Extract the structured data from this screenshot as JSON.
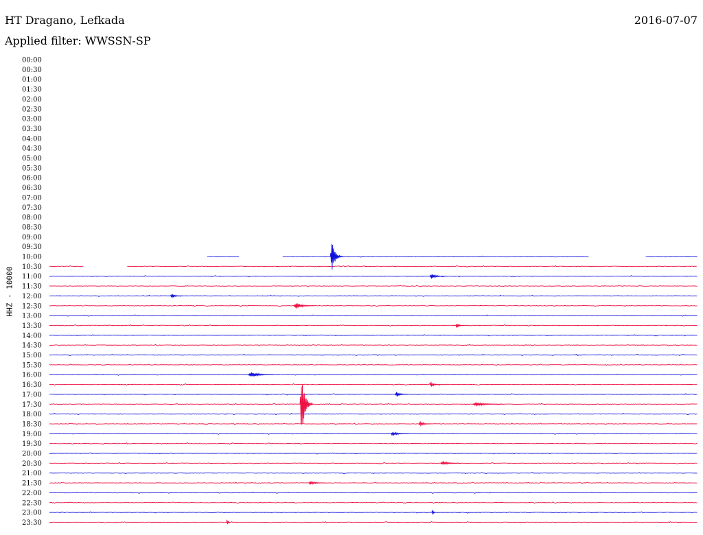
{
  "header": {
    "station": "HT Dragano, Lefkada",
    "date": "2016-07-07",
    "filter_label": "Applied filter:",
    "filter_value": "WWSSN-SP"
  },
  "colors": {
    "trace_a": "#1010dd",
    "trace_b": "#ee1144",
    "text": "#000000"
  },
  "chart_data": {
    "type": "line",
    "title": "HT Dragano, Lefkada",
    "ylabel": "HHZ - 10000",
    "time_labels": [
      "00:00",
      "00:30",
      "01:00",
      "01:30",
      "02:00",
      "02:30",
      "03:00",
      "03:30",
      "04:00",
      "04:30",
      "05:00",
      "05:30",
      "06:00",
      "06:30",
      "07:00",
      "07:30",
      "08:00",
      "08:30",
      "09:00",
      "09:30",
      "10:00",
      "10:30",
      "11:00",
      "11:30",
      "12:00",
      "12:30",
      "13:00",
      "13:30",
      "14:00",
      "14:30",
      "15:00",
      "15:30",
      "16:00",
      "16:30",
      "17:00",
      "17:30",
      "18:00",
      "18:30",
      "19:00",
      "19:30",
      "20:00",
      "20:30",
      "21:00",
      "21:30",
      "22:00",
      "22:30",
      "23:00",
      "23:30"
    ],
    "minutes_per_line": 30,
    "recorded_segments": [
      {
        "line": "10:00",
        "from_min": 7.3,
        "to_min": 8.8
      },
      {
        "line": "10:00",
        "from_min": 10.8,
        "to_min": 25.0
      },
      {
        "line": "10:00",
        "from_min": 27.6,
        "to_min": 30.0
      },
      {
        "line": "10:30",
        "from_min": 0.0,
        "to_min": 1.6
      },
      {
        "line": "10:30",
        "from_min": 3.6,
        "to_min": 30.0
      }
    ],
    "events": [
      {
        "line": "10:00",
        "minute": 13.0,
        "amplitude": 2.2,
        "duration_min": 0.6
      },
      {
        "line": "11:00",
        "minute": 17.6,
        "amplitude": 0.4,
        "duration_min": 0.8
      },
      {
        "line": "12:00",
        "minute": 5.6,
        "amplitude": 0.3,
        "duration_min": 0.6
      },
      {
        "line": "12:30",
        "minute": 11.3,
        "amplitude": 0.5,
        "duration_min": 1.0
      },
      {
        "line": "13:30",
        "minute": 18.8,
        "amplitude": 0.4,
        "duration_min": 0.4
      },
      {
        "line": "16:00",
        "minute": 9.2,
        "amplitude": 0.4,
        "duration_min": 1.2
      },
      {
        "line": "16:30",
        "minute": 17.6,
        "amplitude": 0.4,
        "duration_min": 0.5
      },
      {
        "line": "17:00",
        "minute": 16.0,
        "amplitude": 0.4,
        "duration_min": 0.6
      },
      {
        "line": "17:30",
        "minute": 11.6,
        "amplitude": 4.5,
        "duration_min": 0.6
      },
      {
        "line": "17:30",
        "minute": 19.6,
        "amplitude": 0.3,
        "duration_min": 1.4
      },
      {
        "line": "18:30",
        "minute": 17.1,
        "amplitude": 0.4,
        "duration_min": 0.6
      },
      {
        "line": "19:00",
        "minute": 15.8,
        "amplitude": 0.3,
        "duration_min": 0.8
      },
      {
        "line": "20:30",
        "minute": 18.1,
        "amplitude": 0.3,
        "duration_min": 1.0
      },
      {
        "line": "21:30",
        "minute": 12.0,
        "amplitude": 0.3,
        "duration_min": 0.8
      },
      {
        "line": "23:00",
        "minute": 17.7,
        "amplitude": 0.6,
        "duration_min": 0.2
      },
      {
        "line": "23:30",
        "minute": 8.2,
        "amplitude": 0.6,
        "duration_min": 0.2
      }
    ],
    "grid": false,
    "legend": "none"
  }
}
